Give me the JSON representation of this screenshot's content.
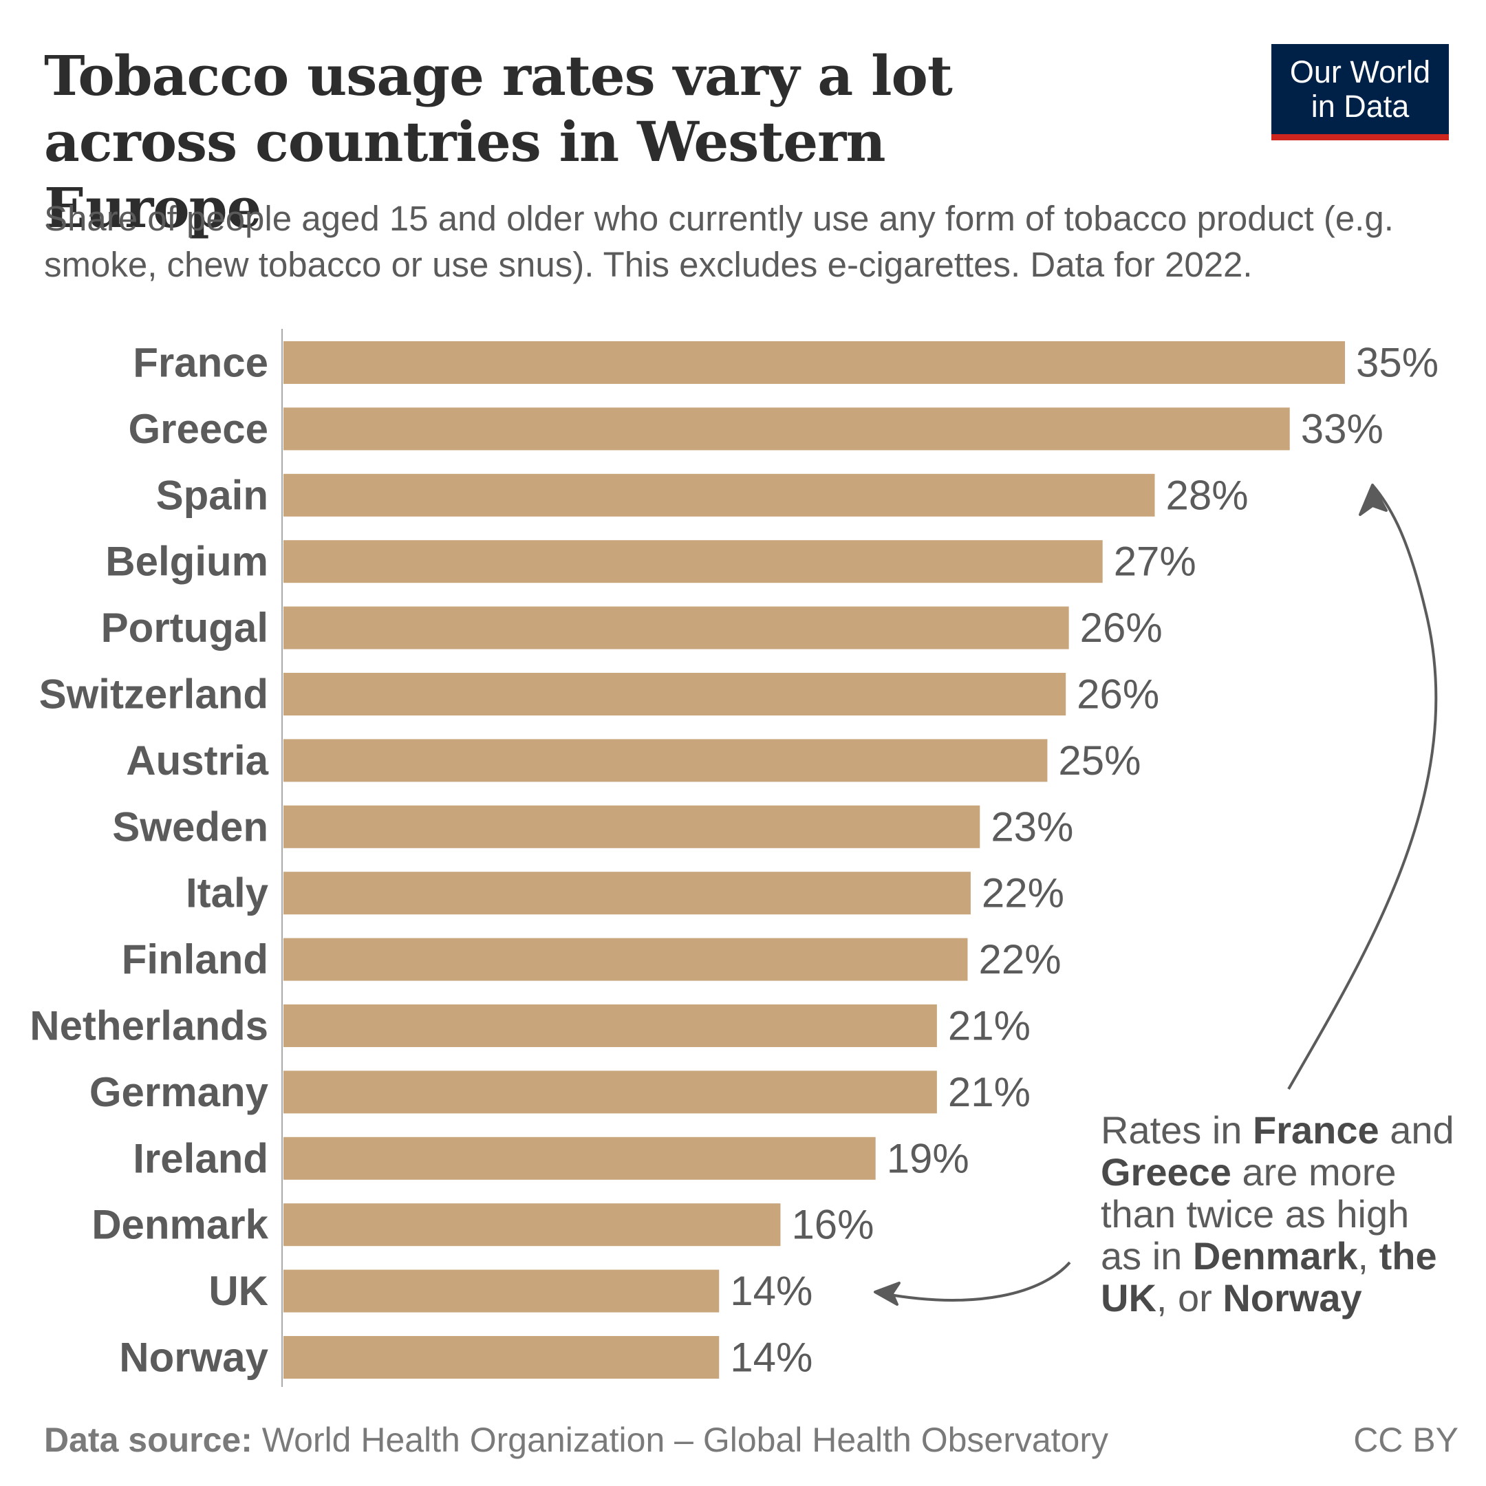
{
  "header": {
    "title": "Tobacco usage rates vary a lot across countries in Western Europe",
    "subtitle": "Share of people aged 15 and older who currently use any form of tobacco product (e.g. smoke, chew tobacco or use snus). This excludes e-cigarettes. Data for 2022.",
    "logo_line1": "Our World",
    "logo_line2": "in Data"
  },
  "annotation": {
    "p1": "Rates in ",
    "b1": "France",
    "p2": " and ",
    "b2": "Greece",
    "p3": " are more than twice as high as in ",
    "b3": "Denmark",
    "p4": ", ",
    "b4": "the UK",
    "p5": ", or ",
    "b5": "Norway"
  },
  "footer": {
    "source_label": "Data source:",
    "source_text": " World Health Organization – Global Health Observatory",
    "license": "CC BY"
  },
  "colors": {
    "bar": "#c8a57b",
    "text": "#5b5b5b",
    "logo_bg": "#002147",
    "logo_accent": "#ce261e"
  },
  "chart_data": {
    "type": "bar",
    "orientation": "horizontal",
    "categories": [
      "France",
      "Greece",
      "Spain",
      "Belgium",
      "Portugal",
      "Switzerland",
      "Austria",
      "Sweden",
      "Italy",
      "Finland",
      "Netherlands",
      "Germany",
      "Ireland",
      "Denmark",
      "UK",
      "Norway"
    ],
    "values": [
      34.6,
      32.8,
      28.4,
      26.7,
      25.6,
      25.5,
      24.9,
      22.7,
      22.4,
      22.3,
      21.3,
      21.3,
      19.3,
      16.2,
      14.2,
      14.2
    ],
    "value_labels": [
      "35%",
      "33%",
      "28%",
      "27%",
      "26%",
      "26%",
      "25%",
      "23%",
      "22%",
      "22%",
      "21%",
      "21%",
      "19%",
      "16%",
      "14%",
      "14%"
    ],
    "xlim": [
      0,
      34.6
    ]
  }
}
